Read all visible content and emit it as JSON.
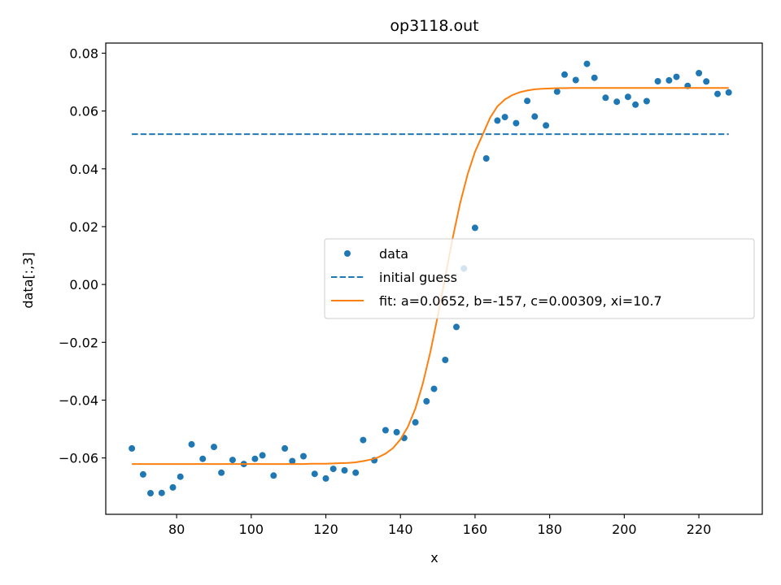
{
  "chart_data": {
    "type": "scatter",
    "title": "op3118.out",
    "xlabel": "x",
    "ylabel": "data[:,3]",
    "xlim": [
      61,
      237
    ],
    "ylim": [
      -0.0795,
      0.0835
    ],
    "xticks": [
      80,
      100,
      120,
      140,
      160,
      180,
      200,
      220
    ],
    "xtick_labels": [
      "80",
      "100",
      "120",
      "140",
      "160",
      "180",
      "200",
      "220"
    ],
    "yticks": [
      -0.06,
      -0.04,
      -0.02,
      0.0,
      0.02,
      0.04,
      0.06,
      0.08
    ],
    "ytick_labels": [
      "−0.06",
      "−0.04",
      "−0.02",
      "0.00",
      "0.02",
      "0.04",
      "0.06",
      "0.08"
    ],
    "grid": false,
    "legend_position": "center-right",
    "series": [
      {
        "name": "data",
        "kind": "scatter",
        "color": "#1f77b4",
        "x": [
          68,
          71,
          73,
          76,
          79,
          81,
          84,
          87,
          90,
          92,
          95,
          98,
          101,
          103,
          106,
          109,
          111,
          114,
          117,
          120,
          122,
          125,
          128,
          130,
          133,
          136,
          139,
          141,
          144,
          147,
          149,
          152,
          155,
          157,
          160,
          163,
          166,
          168,
          171,
          174,
          176,
          179,
          182,
          184,
          187,
          190,
          192,
          195,
          198,
          201,
          203,
          206,
          209,
          212,
          214,
          217,
          220,
          222,
          225,
          228
        ],
        "y": [
          -0.0567,
          -0.0657,
          -0.0722,
          -0.0721,
          -0.0702,
          -0.0665,
          -0.0553,
          -0.0603,
          -0.0562,
          -0.0651,
          -0.0607,
          -0.0621,
          -0.0603,
          -0.0591,
          -0.0661,
          -0.0567,
          -0.0611,
          -0.0594,
          -0.0655,
          -0.0671,
          -0.0638,
          -0.0643,
          -0.0651,
          -0.0538,
          -0.0608,
          -0.0504,
          -0.0511,
          -0.0531,
          -0.0477,
          -0.0404,
          -0.0361,
          -0.0261,
          -0.0147,
          0.0055,
          0.0196,
          0.0436,
          0.0567,
          0.0579,
          0.0558,
          0.0635,
          0.0581,
          0.055,
          0.0667,
          0.0726,
          0.0707,
          0.0763,
          0.0715,
          0.0646,
          0.0632,
          0.0649,
          0.0622,
          0.0634,
          0.0703,
          0.0706,
          0.0718,
          0.0687,
          0.0731,
          0.0702,
          0.0659,
          0.0664
        ]
      },
      {
        "name": "initial guess",
        "kind": "line",
        "style": "dashed",
        "color": "#1f77b4",
        "x": [
          68,
          228
        ],
        "y": [
          0.052,
          0.052
        ]
      },
      {
        "name": "fit: a=0.0652, b=-157, c=0.00309, xi=10.7",
        "kind": "line",
        "color": "#ff7f0e",
        "x": [
          68,
          70,
          72,
          74,
          76,
          78,
          80,
          82,
          84,
          86,
          88,
          90,
          92,
          94,
          96,
          98,
          100,
          102,
          104,
          106,
          108,
          110,
          112,
          114,
          116,
          118,
          120,
          122,
          124,
          126,
          128,
          130,
          132,
          134,
          136,
          138,
          140,
          142,
          144,
          146,
          148,
          150,
          152,
          154,
          156,
          158,
          160,
          162,
          164,
          166,
          168,
          170,
          172,
          174,
          176,
          178,
          180,
          182,
          184,
          186,
          188,
          190,
          192,
          194,
          196,
          198,
          200,
          202,
          204,
          206,
          208,
          210,
          212,
          214,
          216,
          218,
          220,
          222,
          224,
          226,
          228
        ],
        "y": [
          -0.0621,
          -0.0621,
          -0.0621,
          -0.0621,
          -0.0621,
          -0.0621,
          -0.0621,
          -0.0621,
          -0.0621,
          -0.0621,
          -0.0621,
          -0.0621,
          -0.0621,
          -0.0621,
          -0.0621,
          -0.0621,
          -0.0621,
          -0.0621,
          -0.0621,
          -0.0621,
          -0.0621,
          -0.0621,
          -0.0621,
          -0.0621,
          -0.062,
          -0.062,
          -0.062,
          -0.0619,
          -0.0618,
          -0.0617,
          -0.0615,
          -0.0611,
          -0.0606,
          -0.0598,
          -0.0585,
          -0.0566,
          -0.0536,
          -0.0492,
          -0.0429,
          -0.0343,
          -0.0235,
          -0.0109,
          0.0026,
          0.016,
          0.0281,
          0.0381,
          0.0459,
          0.0517,
          0.0576,
          0.0616,
          0.064,
          0.0655,
          0.0665,
          0.0671,
          0.0675,
          0.0677,
          0.0678,
          0.0679,
          0.0679,
          0.068,
          0.068,
          0.068,
          0.068,
          0.068,
          0.068,
          0.068,
          0.068,
          0.068,
          0.068,
          0.068,
          0.068,
          0.068,
          0.068,
          0.068,
          0.068,
          0.068,
          0.068,
          0.068,
          0.068,
          0.068,
          0.068
        ]
      }
    ]
  }
}
